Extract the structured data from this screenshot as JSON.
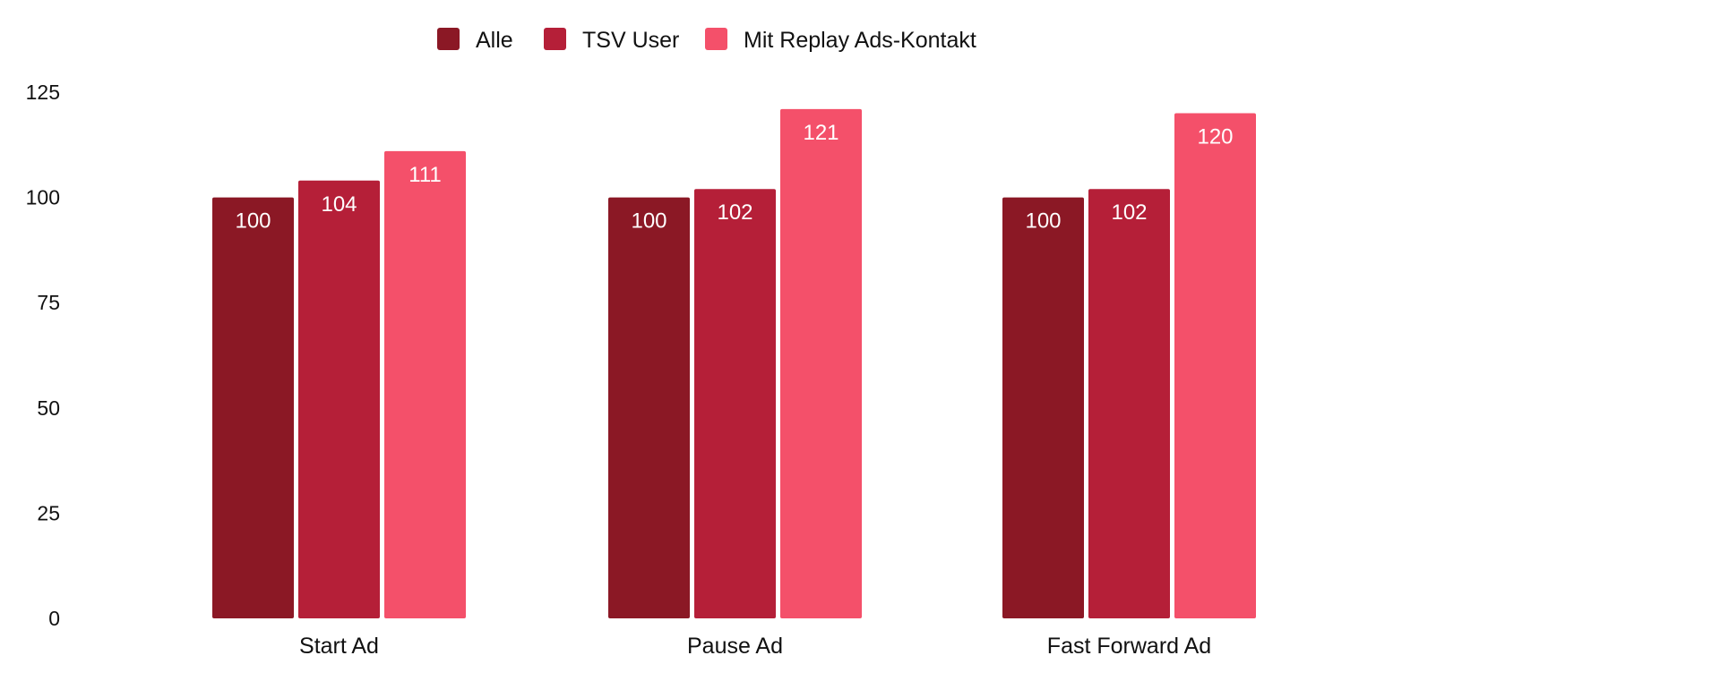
{
  "colors": {
    "alle": "#8B1825",
    "tsv_user": "#B51F38",
    "mit_replay": "#F4506A"
  },
  "chart_data": {
    "type": "bar",
    "categories": [
      "Start Ad",
      "Pause Ad",
      "Fast Forward Ad"
    ],
    "series": [
      {
        "name": "Alle",
        "values": [
          100,
          100,
          100
        ]
      },
      {
        "name": "TSV User",
        "values": [
          104,
          102,
          102
        ]
      },
      {
        "name": "Mit Replay Ads-Kontakt",
        "values": [
          111,
          121,
          120
        ]
      }
    ],
    "title": "",
    "xlabel": "",
    "ylabel": "",
    "ylim": [
      0,
      125
    ],
    "yticks": [
      0,
      25,
      50,
      75,
      100,
      125
    ],
    "grid": false,
    "legend_position": "top"
  }
}
